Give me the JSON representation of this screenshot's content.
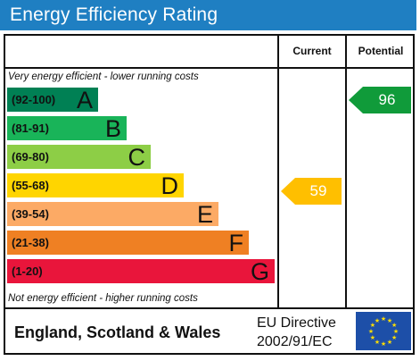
{
  "title": "Energy Efficiency Rating",
  "columns": {
    "current": "Current",
    "potential": "Potential"
  },
  "notes": {
    "top": "Very energy efficient - lower running costs",
    "bottom": "Not energy efficient - higher running costs"
  },
  "bands": [
    {
      "range": "(92-100)",
      "letter": "A",
      "color": "#008054"
    },
    {
      "range": "(81-91)",
      "letter": "B",
      "color": "#19b459"
    },
    {
      "range": "(69-80)",
      "letter": "C",
      "color": "#8dce46"
    },
    {
      "range": "(55-68)",
      "letter": "D",
      "color": "#ffd500"
    },
    {
      "range": "(39-54)",
      "letter": "E",
      "color": "#fcaa65"
    },
    {
      "range": "(21-38)",
      "letter": "F",
      "color": "#ef8023"
    },
    {
      "range": "(1-20)",
      "letter": "G",
      "color": "#e9153b"
    }
  ],
  "ratings": {
    "current": {
      "value": "59",
      "band": "D",
      "color": "#ffbf00"
    },
    "potential": {
      "value": "96",
      "band": "A",
      "color": "#109b3a"
    }
  },
  "footer": {
    "region": "England, Scotland & Wales",
    "directive_line1": "EU Directive",
    "directive_line2": "2002/91/EC",
    "flag_icon": "eu-flag-icon"
  }
}
